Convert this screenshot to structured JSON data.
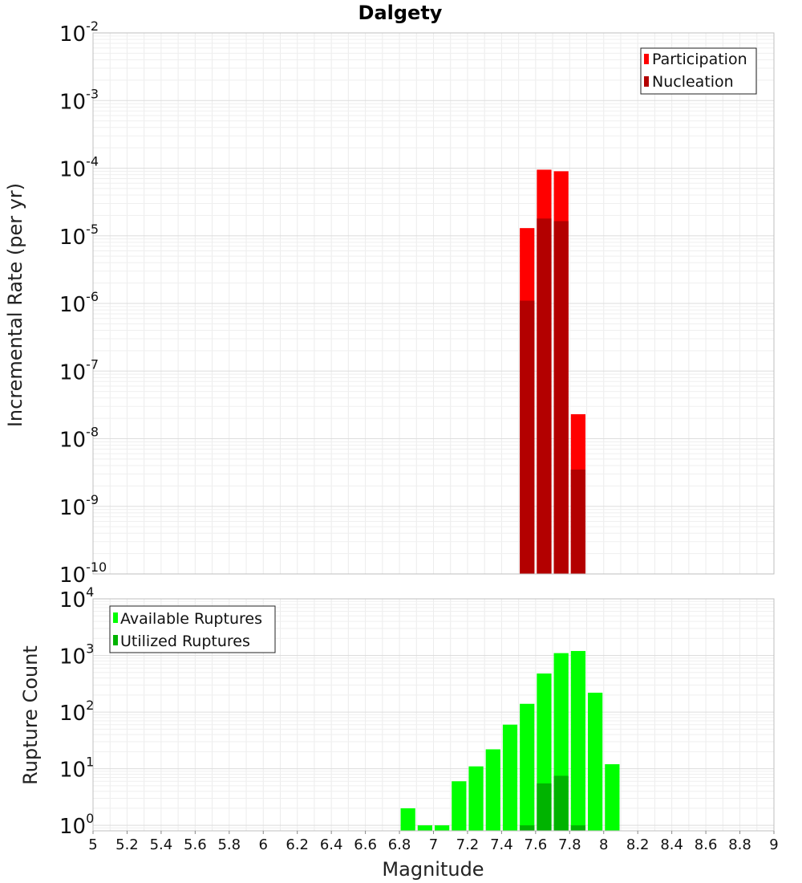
{
  "chart_data": [
    {
      "type": "bar",
      "title": "Dalgety",
      "ylabel": "Incremental Rate (per yr)",
      "xlabel": "",
      "yscale": "log",
      "ylim": [
        1e-10,
        0.01
      ],
      "xlim": [
        5,
        9
      ],
      "bin_width": 0.1,
      "yticks": [
        {
          "base": "10",
          "exp": "-10"
        },
        {
          "base": "10",
          "exp": "-9"
        },
        {
          "base": "10",
          "exp": "-8"
        },
        {
          "base": "10",
          "exp": "-7"
        },
        {
          "base": "10",
          "exp": "-6"
        },
        {
          "base": "10",
          "exp": "-5"
        },
        {
          "base": "10",
          "exp": "-4"
        },
        {
          "base": "10",
          "exp": "-3"
        },
        {
          "base": "10",
          "exp": "-2"
        }
      ],
      "legend_position": "top-right",
      "grid": true,
      "series": [
        {
          "name": "Participation",
          "color": "#ff0000",
          "x": [
            7.55,
            7.65,
            7.75,
            7.85
          ],
          "values": [
            1.3e-05,
            9.5e-05,
            9e-05,
            2.3e-08
          ]
        },
        {
          "name": "Nucleation",
          "color": "#b30000",
          "x": [
            7.55,
            7.65,
            7.75,
            7.85
          ],
          "values": [
            1.1e-06,
            1.8e-05,
            1.65e-05,
            3.5e-09
          ]
        }
      ]
    },
    {
      "type": "bar",
      "title": "",
      "ylabel": "Rupture Count",
      "xlabel": "Magnitude",
      "yscale": "log",
      "ylim": [
        0.8,
        10000
      ],
      "xlim": [
        5,
        9
      ],
      "bin_width": 0.1,
      "yticks": [
        {
          "base": "10",
          "exp": "0"
        },
        {
          "base": "10",
          "exp": "1"
        },
        {
          "base": "10",
          "exp": "2"
        },
        {
          "base": "10",
          "exp": "3"
        },
        {
          "base": "10",
          "exp": "4"
        }
      ],
      "xticks": [
        "5",
        "5.2",
        "5.4",
        "5.6",
        "5.8",
        "6",
        "6.2",
        "6.4",
        "6.6",
        "6.8",
        "7",
        "7.2",
        "7.4",
        "7.6",
        "7.8",
        "8",
        "8.2",
        "8.4",
        "8.6",
        "8.8",
        "9"
      ],
      "legend_position": "top-left",
      "grid": true,
      "series": [
        {
          "name": "Available Ruptures",
          "color": "#00ff00",
          "x": [
            6.85,
            6.95,
            7.05,
            7.15,
            7.25,
            7.35,
            7.45,
            7.55,
            7.65,
            7.75,
            7.85,
            7.95,
            8.05
          ],
          "values": [
            2,
            1,
            1,
            6,
            11,
            22,
            60,
            140,
            480,
            1100,
            1200,
            220,
            12
          ]
        },
        {
          "name": "Utilized Ruptures",
          "color": "#00b300",
          "x": [
            7.55,
            7.65,
            7.75,
            7.85
          ],
          "values": [
            1,
            5.5,
            7.5,
            1
          ]
        }
      ]
    }
  ]
}
